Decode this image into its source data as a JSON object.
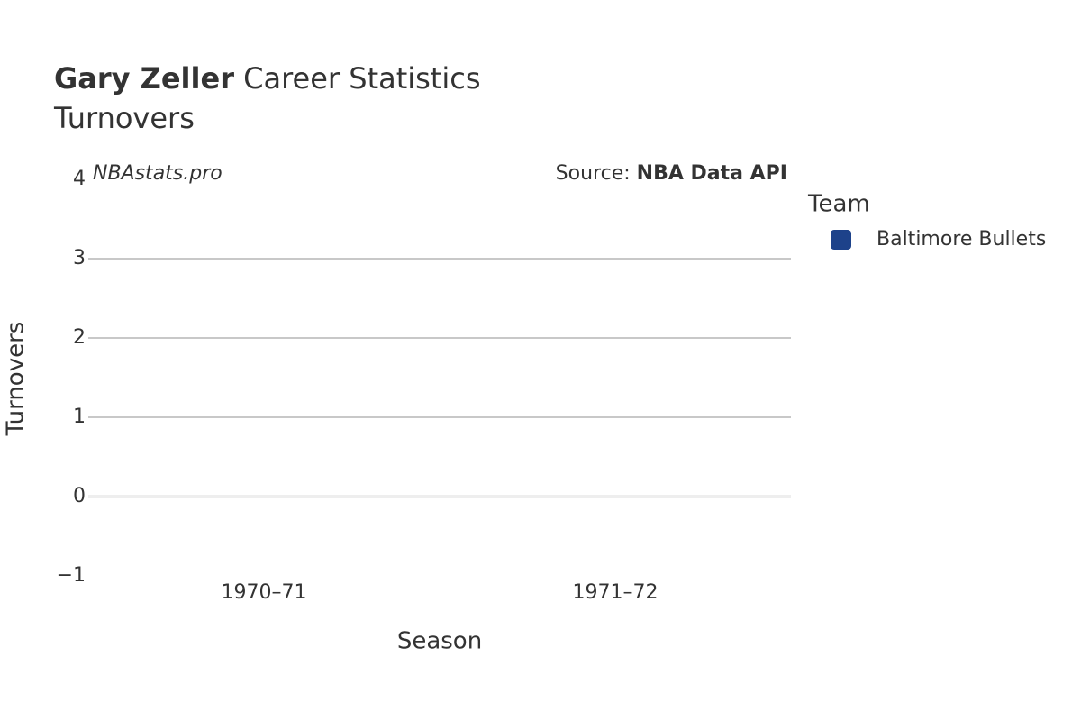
{
  "chart_data": {
    "type": "bar",
    "title": {
      "name": "Gary Zeller",
      "rest": "Career Statistics"
    },
    "subtitle": "Turnovers",
    "watermark": "NBAstats.pro",
    "source": {
      "label": "Source:",
      "name": "NBA Data API"
    },
    "x_label": "Season",
    "y_label": "Turnovers",
    "legend_title": "Team",
    "categories": [
      "1970–71",
      "1971–72"
    ],
    "series": [
      {
        "name": "Baltimore Bullets",
        "color": "#1d428a",
        "values": [
          null,
          null
        ]
      }
    ],
    "ylim": [
      -1,
      4
    ],
    "yticks": [
      {
        "value": -1,
        "label": "−1"
      },
      0,
      1,
      2,
      3,
      4
    ],
    "grid": true
  }
}
